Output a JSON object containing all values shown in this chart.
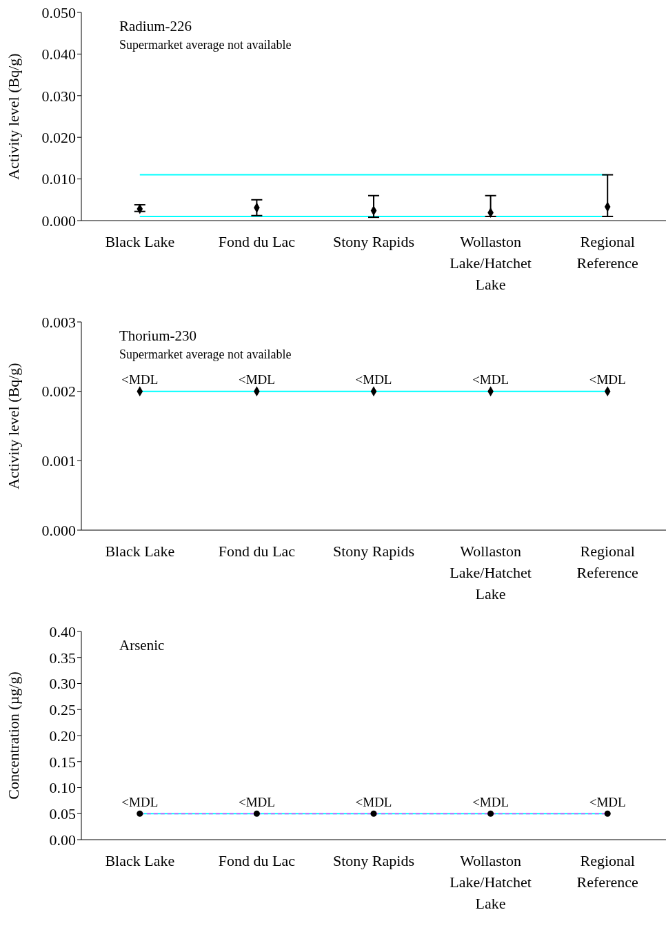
{
  "chart_data": [
    {
      "type": "scatter",
      "title": "Radium-226",
      "subtitle": "Supermarket average not available",
      "ylabel": "Activity level (Bq/g)",
      "categories": [
        "Black Lake",
        "Fond du Lac",
        "Stony Rapids",
        "Wollaston Lake/Hatchet Lake",
        "Regional Reference"
      ],
      "series": [
        {
          "color": "#000000",
          "values": [
            0.0028,
            0.0031,
            0.0024,
            0.0019,
            0.0033
          ],
          "errors": [
            [
              0.0022,
              0.0038
            ],
            [
              0.0012,
              0.005
            ],
            [
              0.0008,
              0.006
            ],
            [
              0.001,
              0.006
            ],
            [
              0.001,
              0.011
            ]
          ]
        }
      ],
      "marker": "diamond",
      "ylim": [
        0,
        0.05
      ],
      "yticks": [
        {
          "value": 0,
          "label": "0.000"
        },
        {
          "value": 0.01,
          "label": "0.010"
        },
        {
          "value": 0.02,
          "label": "0.020"
        },
        {
          "value": 0.03,
          "label": "0.030"
        },
        {
          "value": 0.04,
          "label": "0.040"
        },
        {
          "value": 0.05,
          "label": "0.050"
        }
      ],
      "ref_lines": [
        {
          "axis": "y",
          "value": 0.011,
          "color": "#00ffff"
        },
        {
          "axis": "y",
          "value": 0.001,
          "color": "#00ffff"
        }
      ],
      "grid": false,
      "legend": false
    },
    {
      "type": "scatter",
      "title": "Thorium-230",
      "subtitle": "Supermarket average not available",
      "ylabel": "Activity level (Bq/g)",
      "categories": [
        "Black Lake",
        "Fond du Lac",
        "Stony Rapids",
        "Wollaston Lake/Hatchet Lake",
        "Regional Reference"
      ],
      "series": [
        {
          "color": "#000000",
          "values": [
            0.002,
            0.002,
            0.002,
            0.002,
            0.002
          ],
          "value_labels": [
            "<MDL",
            "<MDL",
            "<MDL",
            "<MDL",
            "<MDL"
          ]
        }
      ],
      "marker": "diamond",
      "ylim": [
        0,
        0.003
      ],
      "yticks": [
        {
          "value": 0,
          "label": "0.000"
        },
        {
          "value": 0.001,
          "label": "0.001"
        },
        {
          "value": 0.002,
          "label": "0.002"
        },
        {
          "value": 0.003,
          "label": "0.003"
        }
      ],
      "ref_lines": [
        {
          "axis": "y",
          "value": 0.002,
          "color": "#00ffff"
        }
      ],
      "grid": false,
      "legend": false
    },
    {
      "type": "scatter",
      "title": "Arsenic",
      "ylabel": "Concentration (µg/g)",
      "categories": [
        "Black Lake",
        "Fond du Lac",
        "Stony Rapids",
        "Wollaston Lake/Hatchet Lake",
        "Regional Reference"
      ],
      "series": [
        {
          "color": "#000000",
          "values": [
            0.05,
            0.05,
            0.05,
            0.05,
            0.05
          ],
          "value_labels": [
            "<MDL",
            "<MDL",
            "<MDL",
            "<MDL",
            "<MDL"
          ]
        }
      ],
      "marker": "circle",
      "ylim": [
        0,
        0.4
      ],
      "yticks": [
        {
          "value": 0,
          "label": "0.00"
        },
        {
          "value": 0.05,
          "label": "0.05"
        },
        {
          "value": 0.1,
          "label": "0.10"
        },
        {
          "value": 0.15,
          "label": "0.15"
        },
        {
          "value": 0.2,
          "label": "0.20"
        },
        {
          "value": 0.25,
          "label": "0.25"
        },
        {
          "value": 0.3,
          "label": "0.30"
        },
        {
          "value": 0.35,
          "label": "0.35"
        },
        {
          "value": 0.4,
          "label": "0.40"
        }
      ],
      "ref_lines": [
        {
          "axis": "y",
          "value": 0.05,
          "color": "#00ffff"
        },
        {
          "axis": "y",
          "value": 0.05,
          "color": "#cc66ff",
          "line_style": "dashed"
        }
      ],
      "grid": false,
      "legend": false
    }
  ]
}
